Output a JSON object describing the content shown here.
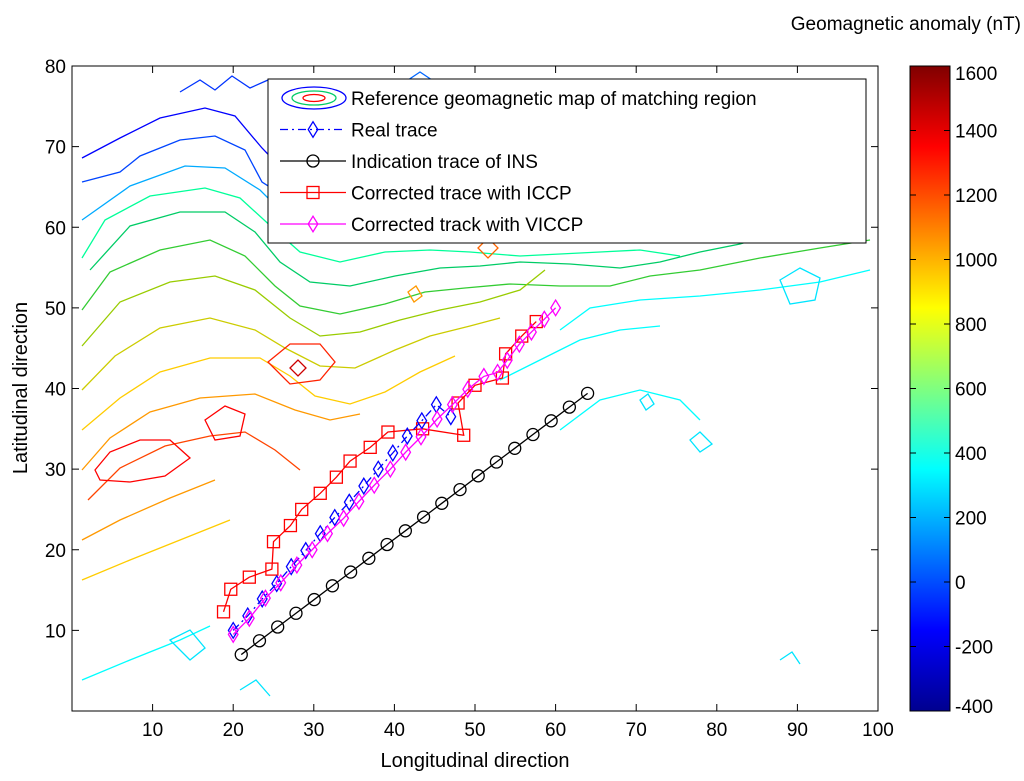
{
  "chart_data": {
    "type": "line",
    "xlabel": "Longitudinal direction",
    "ylabel": "Latitudinal direction",
    "xlim": [
      0,
      100
    ],
    "ylim": [
      0,
      80
    ],
    "xticks": [
      10,
      20,
      30,
      40,
      50,
      60,
      70,
      80,
      90,
      100
    ],
    "yticks": [
      10,
      20,
      30,
      40,
      50,
      60,
      70,
      80
    ],
    "colorbar": {
      "title": "Geomagnetic anomaly (nT)",
      "range": [
        -400,
        1600
      ],
      "ticks": [
        1600,
        1400,
        1200,
        1000,
        800,
        600,
        400,
        200,
        0,
        -200,
        -400
      ]
    },
    "legend": {
      "position": "top-center",
      "entries": [
        "Reference geomagnetic map of matching region",
        "Real trace",
        "Indication trace of INS",
        "Corrected trace with ICCP",
        "Corrected track with VICCP"
      ]
    },
    "series": [
      {
        "name": "Real trace",
        "color": "#0000ff",
        "marker": "diamond",
        "style": "dashdot",
        "x": [
          20,
          21.8,
          23.6,
          25.4,
          27.2,
          29,
          30.8,
          32.6,
          34.4,
          36.2,
          38,
          39.8,
          41.6,
          43.4,
          45.2,
          47
        ],
        "y": [
          10,
          11.8,
          13.9,
          15.8,
          17.9,
          19.9,
          22,
          24,
          25.9,
          27.9,
          30,
          32,
          34.1,
          36,
          38,
          36.5
        ]
      },
      {
        "name": "Indication trace of INS",
        "color": "#000000",
        "marker": "circle",
        "style": "solid",
        "x": [
          21,
          23.26,
          25.52,
          27.79,
          30.05,
          32.31,
          34.57,
          36.83,
          39.09,
          41.36,
          43.62,
          45.88,
          48.14,
          50.4,
          52.66,
          54.93,
          57.19,
          59.45,
          61.71,
          63.97
        ],
        "y": [
          7,
          8.71,
          10.42,
          12.12,
          13.82,
          15.53,
          17.23,
          18.94,
          20.65,
          22.35,
          24.05,
          25.76,
          27.46,
          29.17,
          30.88,
          32.58,
          34.29,
          35.99,
          37.69,
          39.4
        ]
      },
      {
        "name": "Corrected trace with ICCP",
        "color": "#ff0000",
        "marker": "square",
        "style": "solid",
        "x": [
          18.8,
          19.7,
          22,
          24.8,
          25,
          27.1,
          28.5,
          30.8,
          32.8,
          34.5,
          37,
          39.2,
          43.5,
          48.6,
          47.9,
          50,
          53.4,
          53.8,
          55.8,
          57.6
        ],
        "y": [
          12.3,
          15.1,
          16.6,
          17.6,
          21,
          23,
          25,
          27,
          29,
          31,
          32.7,
          34.6,
          35,
          34.2,
          38.2,
          40.4,
          41.3,
          44.3,
          46.5,
          48.3
        ]
      },
      {
        "name": "Corrected track with VICCP",
        "color": "#ff00ff",
        "marker": "diamond",
        "style": "solid",
        "x": [
          20,
          22,
          24,
          25.9,
          27.9,
          29.8,
          31.7,
          33.7,
          35.6,
          37.5,
          39.5,
          41.4,
          43.3,
          45.3,
          47.2,
          49.1,
          51.1,
          52.8,
          54,
          55.5,
          57,
          58.6,
          60
        ],
        "y": [
          9.5,
          11.5,
          14,
          15.9,
          18.1,
          20,
          22,
          23.9,
          26,
          28,
          30,
          32.1,
          34,
          36.2,
          38,
          39.9,
          41.5,
          42,
          43.5,
          45.5,
          47,
          48.6,
          50
        ]
      }
    ]
  }
}
